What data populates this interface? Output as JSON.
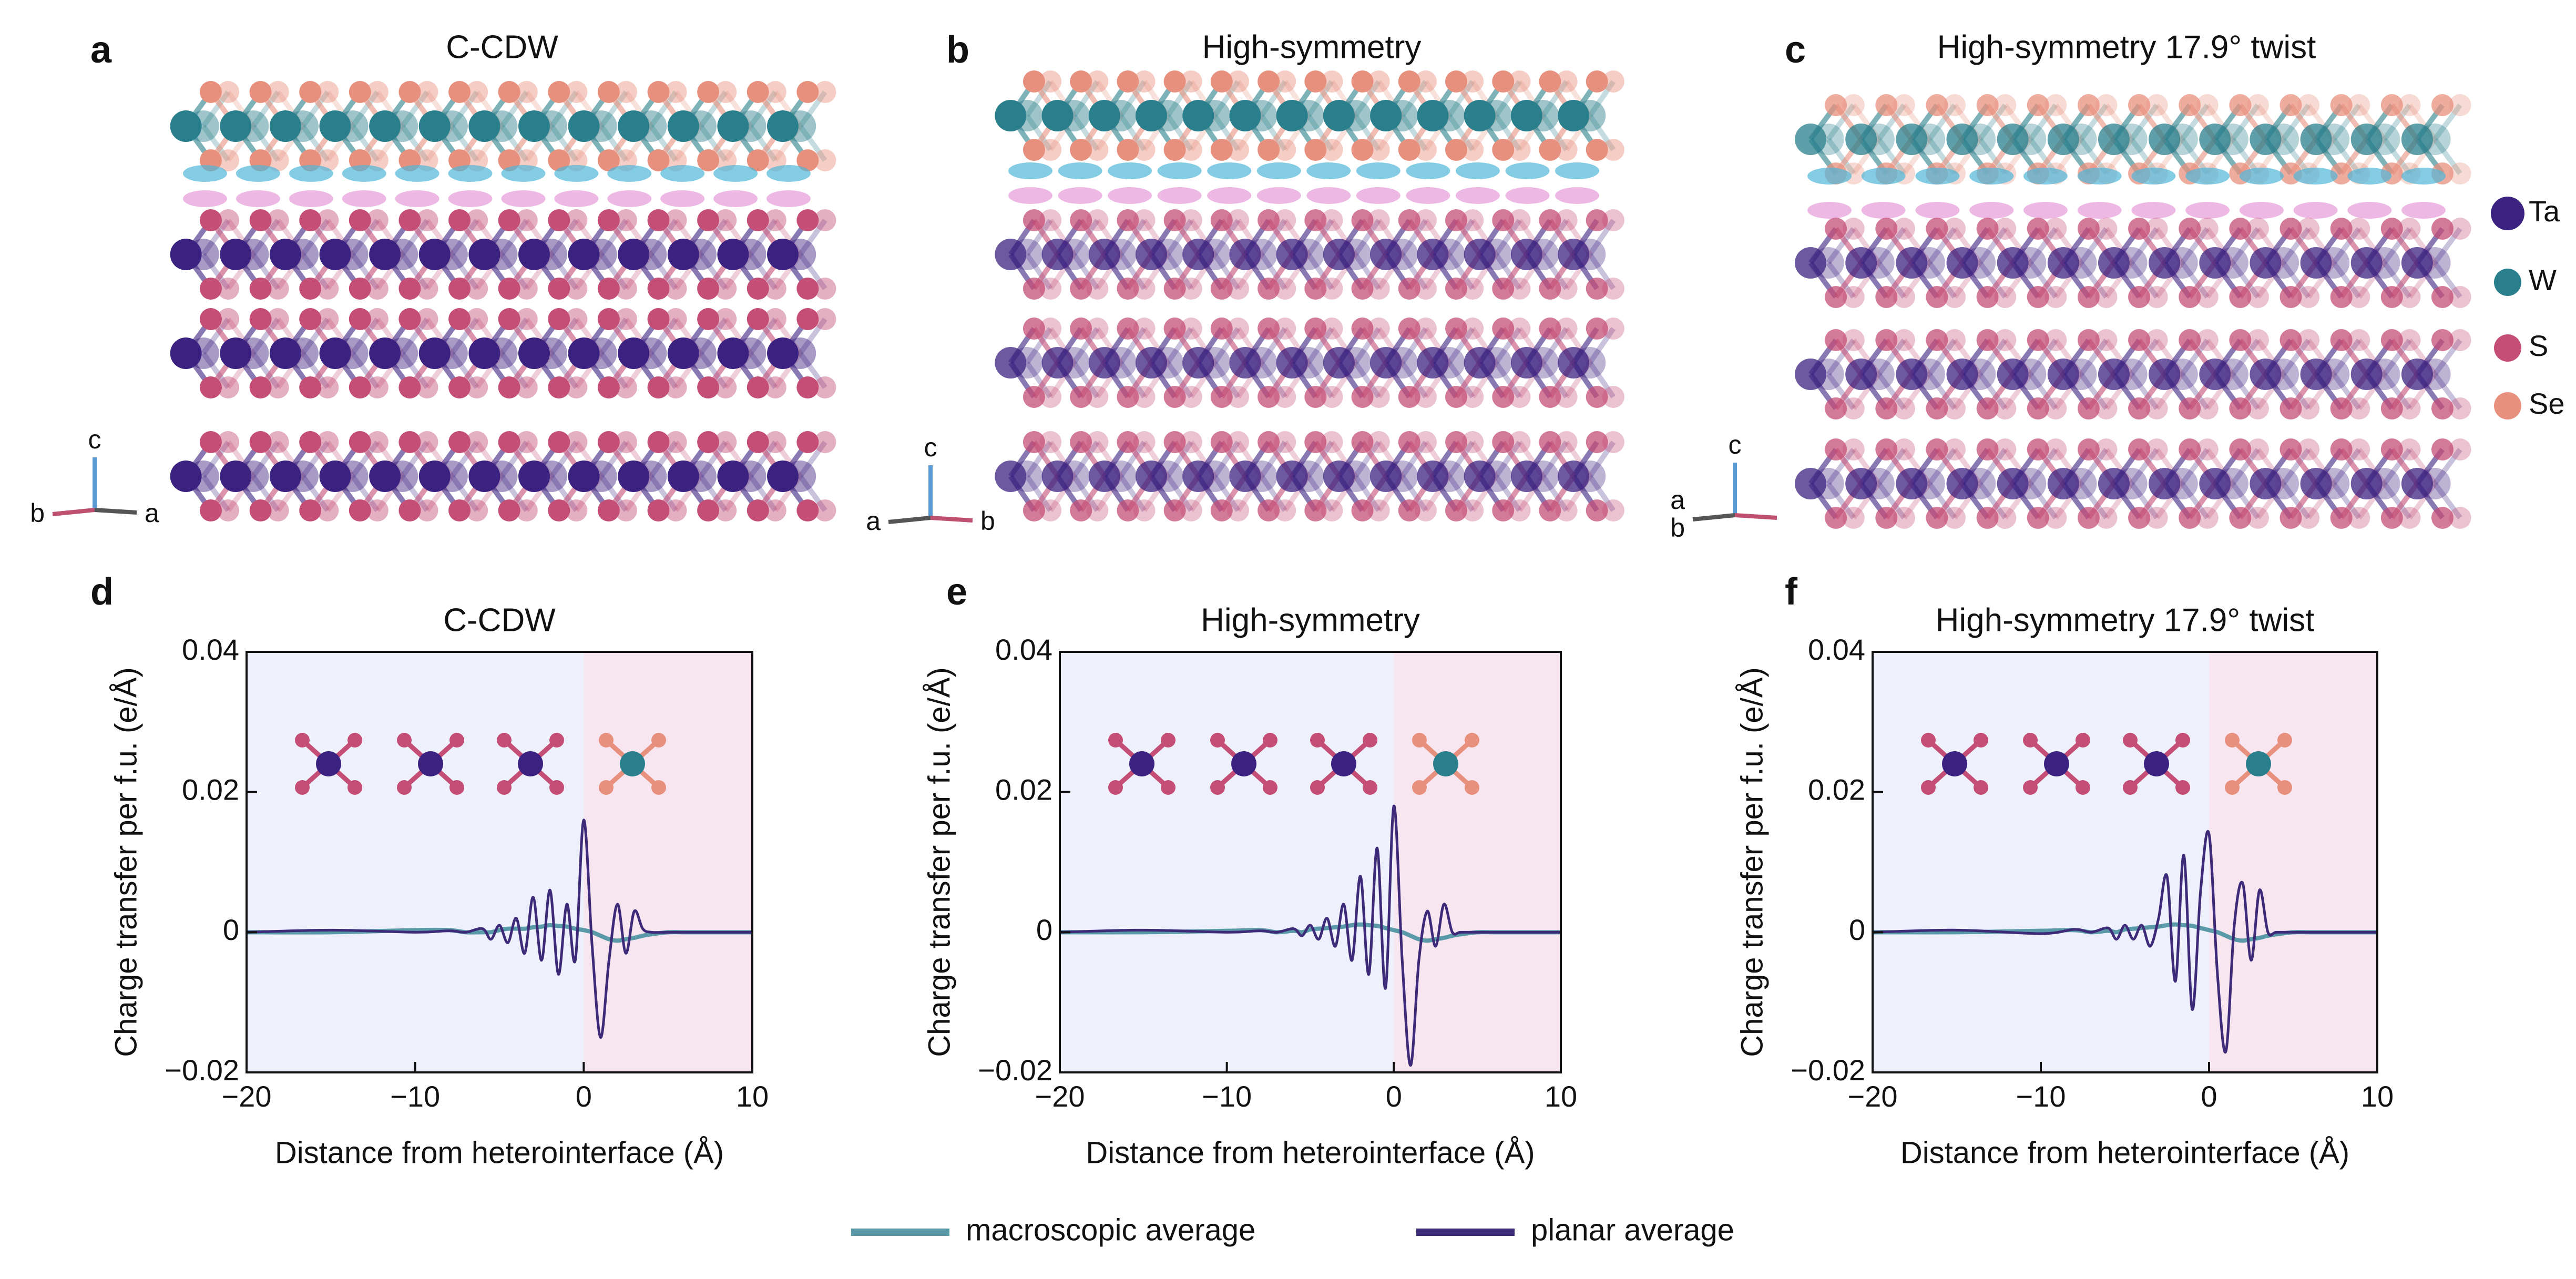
{
  "structures": [
    {
      "label": "a",
      "title": "C-CDW",
      "axes": [
        "c",
        "b",
        "a"
      ]
    },
    {
      "label": "b",
      "title": "High-symmetry",
      "axes": [
        "c",
        "a",
        "b"
      ]
    },
    {
      "label": "c",
      "title": "High-symmetry 17.9° twist",
      "axes": [
        "c",
        "a",
        "b"
      ]
    }
  ],
  "atom_legend": [
    {
      "label": "Ta",
      "color": "#3b2180"
    },
    {
      "label": "W",
      "color": "#2a7f8c"
    },
    {
      "label": "S",
      "color": "#c44e75"
    },
    {
      "label": "Se",
      "color": "#e8907e"
    }
  ],
  "chart_data": [
    {
      "type": "line",
      "panel": "d",
      "title": "C-CDW",
      "xlabel": "Distance from heterointerface (Å)",
      "ylabel": "Charge transfer per f.u. (e/Å)",
      "xlim": [
        -20,
        10
      ],
      "ylim": [
        -0.02,
        0.04
      ],
      "xticks": [
        {
          "value": -20,
          "label": "−20"
        },
        {
          "value": -10,
          "label": "−10"
        },
        0,
        10
      ],
      "yticks": [
        {
          "value": -0.02,
          "label": "−0.02"
        },
        0,
        0.02,
        0.04
      ],
      "shading": [
        {
          "xlim": [
            -20,
            0
          ],
          "color": "#eef0fb"
        },
        {
          "xlim": [
            0,
            10
          ],
          "color": "#f7e6f0"
        }
      ],
      "x": [
        -20,
        -15,
        -10,
        -8,
        -7,
        -6,
        -5.5,
        -5,
        -4.5,
        -4,
        -3.5,
        -3,
        -2.5,
        -2,
        -1.5,
        -1,
        -0.5,
        0,
        0.5,
        1,
        1.5,
        2,
        2.5,
        3,
        3.5,
        4,
        5,
        6,
        8,
        10
      ],
      "series": [
        {
          "name": "macroscopic average",
          "color": "#5a9aa8",
          "values": [
            0,
            0,
            0.0003,
            0.0003,
            0,
            0,
            0,
            0.0003,
            0.0005,
            0.0005,
            0.0005,
            0.0007,
            0.0008,
            0.001,
            0.0009,
            0.0008,
            0.0005,
            0.0003,
            0,
            -0.0005,
            -0.001,
            -0.0012,
            -0.001,
            -0.0008,
            -0.0005,
            -0.0003,
            0,
            0,
            0,
            0
          ]
        },
        {
          "name": "planar average",
          "color": "#3d2a78",
          "values": [
            0,
            0.0003,
            0,
            0.0002,
            0,
            0.0005,
            -0.001,
            0.001,
            -0.0015,
            0.002,
            -0.003,
            0.005,
            -0.004,
            0.006,
            -0.006,
            0.004,
            -0.004,
            0.016,
            -0.002,
            -0.015,
            -0.004,
            0.004,
            -0.003,
            0.003,
            0.0005,
            0,
            0,
            0,
            0,
            0
          ]
        }
      ]
    },
    {
      "type": "line",
      "panel": "e",
      "title": "High-symmetry",
      "xlabel": "Distance from heterointerface (Å)",
      "ylabel": "Charge transfer per f.u. (e/Å)",
      "xlim": [
        -20,
        10
      ],
      "ylim": [
        -0.02,
        0.04
      ],
      "xticks": [
        {
          "value": -20,
          "label": "−20"
        },
        {
          "value": -10,
          "label": "−10"
        },
        0,
        10
      ],
      "yticks": [
        {
          "value": -0.02,
          "label": "−0.02"
        },
        0,
        0.02,
        0.04
      ],
      "shading": [
        {
          "xlim": [
            -20,
            0
          ],
          "color": "#eef0fb"
        },
        {
          "xlim": [
            0,
            10
          ],
          "color": "#f7e6f0"
        }
      ],
      "x": [
        -20,
        -15,
        -10,
        -8,
        -7,
        -6,
        -5.5,
        -5,
        -4.5,
        -4,
        -3.5,
        -3,
        -2.5,
        -2,
        -1.5,
        -1,
        -0.5,
        0,
        0.5,
        1,
        1.5,
        2,
        2.5,
        3,
        3.5,
        4,
        5,
        6,
        8,
        10
      ],
      "series": [
        {
          "name": "macroscopic average",
          "color": "#5a9aa8",
          "values": [
            0,
            0,
            0.0002,
            0.0003,
            0,
            0.0002,
            0,
            0.0004,
            0.0005,
            0.0006,
            0.0007,
            0.0008,
            0.001,
            0.0011,
            0.001,
            0.0009,
            0.0006,
            0.0003,
            0,
            -0.0005,
            -0.001,
            -0.0012,
            -0.001,
            -0.0008,
            -0.0005,
            -0.0003,
            0,
            0,
            0,
            0
          ]
        },
        {
          "name": "planar average",
          "color": "#3d2a78",
          "values": [
            0,
            0.0003,
            0,
            0.0002,
            0,
            0.0005,
            -0.0005,
            0.001,
            -0.001,
            0.002,
            -0.002,
            0.004,
            -0.004,
            0.008,
            -0.006,
            0.012,
            -0.008,
            0.018,
            -0.004,
            -0.019,
            -0.004,
            0.003,
            -0.002,
            0.004,
            0,
            0,
            0,
            0,
            0,
            0
          ]
        }
      ]
    },
    {
      "type": "line",
      "panel": "f",
      "title": "High-symmetry 17.9° twist",
      "xlabel": "Distance from heterointerface (Å)",
      "ylabel": "Charge transfer per f.u. (e/Å)",
      "xlim": [
        -20,
        10
      ],
      "ylim": [
        -0.02,
        0.04
      ],
      "xticks": [
        {
          "value": -20,
          "label": "−20"
        },
        {
          "value": -10,
          "label": "−10"
        },
        0,
        10
      ],
      "yticks": [
        {
          "value": -0.02,
          "label": "−0.02"
        },
        0,
        0.02,
        0.04
      ],
      "shading": [
        {
          "xlim": [
            -20,
            0
          ],
          "color": "#eef0fb"
        },
        {
          "xlim": [
            0,
            10
          ],
          "color": "#f7e6f0"
        }
      ],
      "x": [
        -20,
        -15,
        -10,
        -8,
        -7,
        -6,
        -5.5,
        -5,
        -4.5,
        -4,
        -3.5,
        -3,
        -2.5,
        -2,
        -1.5,
        -1,
        -0.5,
        0,
        0.5,
        1,
        1.5,
        2,
        2.5,
        3,
        3.5,
        4,
        5,
        6,
        8,
        10
      ],
      "series": [
        {
          "name": "macroscopic average",
          "color": "#5a9aa8",
          "values": [
            0,
            0,
            0.0002,
            0.0003,
            0,
            0.0002,
            0,
            0.0004,
            0.0005,
            0.0006,
            0.0007,
            0.0008,
            0.001,
            0.0011,
            0.001,
            0.0009,
            0.0006,
            0.0003,
            0,
            -0.0005,
            -0.001,
            -0.0012,
            -0.001,
            -0.0008,
            -0.0005,
            -0.0003,
            0,
            0,
            0,
            0
          ]
        },
        {
          "name": "planar average",
          "color": "#3d2a78",
          "values": [
            0,
            0.0003,
            -0.0002,
            0.0004,
            0,
            0.0006,
            -0.001,
            0.001,
            -0.001,
            0.001,
            -0.002,
            0.002,
            0.008,
            -0.007,
            0.011,
            -0.011,
            0.006,
            0.014,
            -0.006,
            -0.017,
            0.001,
            0.007,
            -0.004,
            0.006,
            0,
            0,
            0,
            0,
            0,
            0
          ]
        }
      ]
    }
  ]
}
